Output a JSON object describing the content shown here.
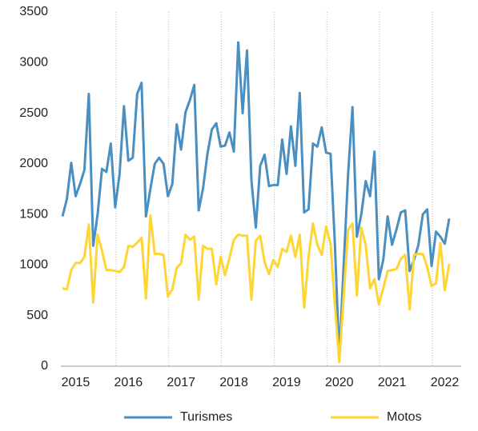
{
  "chart_data": {
    "type": "line",
    "categories": [
      null,
      null,
      null,
      "2015",
      null,
      null,
      null,
      null,
      null,
      null,
      null,
      null,
      null,
      null,
      null,
      "2016",
      null,
      null,
      null,
      null,
      null,
      null,
      null,
      null,
      null,
      null,
      null,
      "2017",
      null,
      null,
      null,
      null,
      null,
      null,
      null,
      null,
      null,
      null,
      null,
      "2018",
      null,
      null,
      null,
      null,
      null,
      null,
      null,
      null,
      null,
      null,
      null,
      "2019",
      null,
      null,
      null,
      null,
      null,
      null,
      null,
      null,
      null,
      null,
      null,
      "2020",
      null,
      null,
      null,
      null,
      null,
      null,
      null,
      null,
      null,
      null,
      null,
      "2021",
      null,
      null,
      null,
      null,
      null,
      null,
      null,
      null,
      null,
      null,
      null,
      "2022",
      null
    ],
    "series": [
      {
        "name": "Turismes",
        "color": "#4a8fc1",
        "values": [
          1480,
          1650,
          2010,
          1680,
          1800,
          1940,
          2690,
          1190,
          1500,
          1950,
          1920,
          2200,
          1570,
          1900,
          2570,
          2030,
          2060,
          2690,
          2800,
          1480,
          1750,
          2000,
          2060,
          2000,
          1680,
          1800,
          2390,
          2140,
          2510,
          2630,
          2780,
          1540,
          1760,
          2100,
          2340,
          2400,
          2170,
          2180,
          2310,
          2120,
          3200,
          2500,
          3120,
          1840,
          1370,
          1980,
          2090,
          1780,
          1790,
          1790,
          2240,
          1900,
          2370,
          1980,
          2700,
          1520,
          1550,
          2200,
          2170,
          2360,
          2110,
          2100,
          1200,
          80,
          1000,
          1900,
          2560,
          1280,
          1500,
          1830,
          1680,
          2120,
          860,
          1050,
          1480,
          1200,
          1350,
          1520,
          1540,
          940,
          1050,
          1200,
          1500,
          1550,
          990,
          1330,
          1280,
          1210,
          1460
        ]
      },
      {
        "name": "Motos",
        "color": "#fdd535",
        "values": [
          770,
          760,
          950,
          1020,
          1020,
          1080,
          1400,
          630,
          1300,
          1140,
          950,
          950,
          940,
          930,
          980,
          1190,
          1180,
          1220,
          1270,
          670,
          1490,
          1110,
          1110,
          1100,
          690,
          760,
          970,
          1020,
          1300,
          1250,
          1280,
          660,
          1190,
          1160,
          1160,
          810,
          1080,
          900,
          1070,
          1250,
          1300,
          1290,
          1290,
          660,
          1240,
          1290,
          1030,
          910,
          1050,
          980,
          1160,
          1130,
          1290,
          1080,
          1300,
          580,
          1080,
          1410,
          1200,
          1100,
          1380,
          1210,
          600,
          40,
          700,
          1350,
          1410,
          700,
          1370,
          1200,
          770,
          860,
          610,
          770,
          940,
          950,
          960,
          1060,
          1100,
          560,
          1100,
          1110,
          1110,
          980,
          790,
          820,
          1220,
          750,
          1010
        ]
      }
    ],
    "ylim": [
      0,
      3500
    ],
    "yticks": [
      0,
      500,
      1000,
      1500,
      2000,
      2500,
      3000,
      3500
    ],
    "xgrid": true,
    "legend": "bottom"
  }
}
